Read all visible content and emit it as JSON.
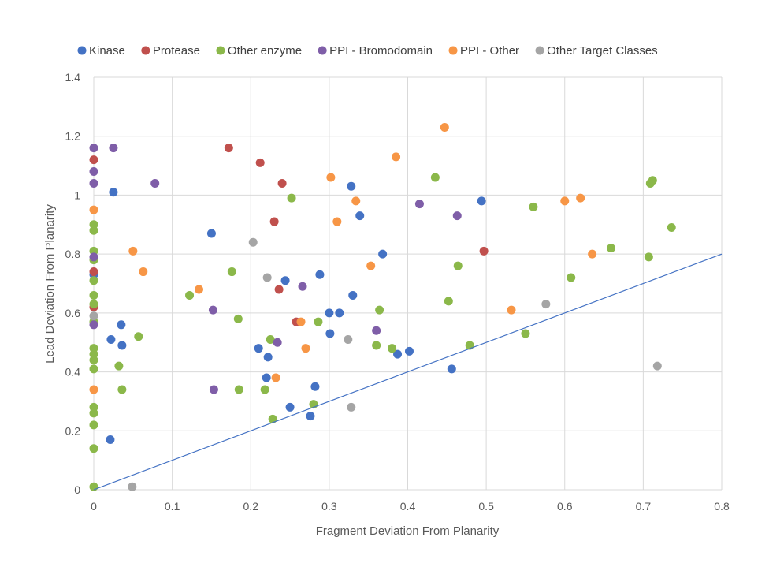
{
  "chart_data": {
    "type": "scatter",
    "title": "",
    "xlabel": "Fragment Deviation From Planarity",
    "ylabel": "Lead Deviation From Planarity",
    "xlim": [
      0,
      0.8
    ],
    "ylim": [
      0,
      1.4
    ],
    "x_ticks": [
      "0",
      "0.1",
      "0.2",
      "0.3",
      "0.4",
      "0.5",
      "0.6",
      "0.7",
      "0.8"
    ],
    "y_ticks": [
      "0",
      "0.2",
      "0.4",
      "0.6",
      "0.8",
      "1",
      "1.2",
      "1.4"
    ],
    "grid": true,
    "legend_position": "top",
    "trendline": {
      "type": "line",
      "points": [
        [
          0,
          0
        ],
        [
          0.8,
          0.8
        ]
      ],
      "color": "#4472c4"
    },
    "series": [
      {
        "name": "Kinase",
        "color": "#4472c4",
        "points": [
          [
            0,
            0.73
          ],
          [
            0.025,
            1.01
          ],
          [
            0.021,
            0.17
          ],
          [
            0.022,
            0.51
          ],
          [
            0.035,
            0.56
          ],
          [
            0.036,
            0.49
          ],
          [
            0.15,
            0.87
          ],
          [
            0.21,
            0.48
          ],
          [
            0.22,
            0.38
          ],
          [
            0.222,
            0.45
          ],
          [
            0.244,
            0.71
          ],
          [
            0.25,
            0.28
          ],
          [
            0.276,
            0.25
          ],
          [
            0.282,
            0.35
          ],
          [
            0.288,
            0.73
          ],
          [
            0.3,
            0.6
          ],
          [
            0.301,
            0.53
          ],
          [
            0.313,
            0.6
          ],
          [
            0.328,
            1.03
          ],
          [
            0.33,
            0.66
          ],
          [
            0.339,
            0.93
          ],
          [
            0.368,
            0.8
          ],
          [
            0.387,
            0.46
          ],
          [
            0.402,
            0.47
          ],
          [
            0.456,
            0.41
          ],
          [
            0.494,
            0.98
          ]
        ]
      },
      {
        "name": "Protease",
        "color": "#c0504d",
        "points": [
          [
            0,
            1.12
          ],
          [
            0,
            0.74
          ],
          [
            0,
            0.62
          ],
          [
            0.172,
            1.16
          ],
          [
            0.212,
            1.11
          ],
          [
            0.23,
            0.91
          ],
          [
            0.236,
            0.68
          ],
          [
            0.24,
            1.04
          ],
          [
            0.258,
            0.57
          ],
          [
            0.497,
            0.81
          ]
        ]
      },
      {
        "name": "Other enzyme",
        "color": "#8bb84a",
        "points": [
          [
            0,
            0.9
          ],
          [
            0,
            0.88
          ],
          [
            0,
            0.81
          ],
          [
            0,
            0.78
          ],
          [
            0,
            0.71
          ],
          [
            0,
            0.66
          ],
          [
            0,
            0.63
          ],
          [
            0,
            0.57
          ],
          [
            0,
            0.48
          ],
          [
            0,
            0.46
          ],
          [
            0,
            0.44
          ],
          [
            0,
            0.41
          ],
          [
            0,
            0.28
          ],
          [
            0,
            0.26
          ],
          [
            0,
            0.22
          ],
          [
            0,
            0.14
          ],
          [
            0,
            0.01
          ],
          [
            0.032,
            0.42
          ],
          [
            0.036,
            0.34
          ],
          [
            0.057,
            0.52
          ],
          [
            0.122,
            0.66
          ],
          [
            0.176,
            0.74
          ],
          [
            0.184,
            0.58
          ],
          [
            0.185,
            0.34
          ],
          [
            0.218,
            0.34
          ],
          [
            0.225,
            0.51
          ],
          [
            0.228,
            0.24
          ],
          [
            0.252,
            0.99
          ],
          [
            0.28,
            0.29
          ],
          [
            0.286,
            0.57
          ],
          [
            0.36,
            0.49
          ],
          [
            0.364,
            0.61
          ],
          [
            0.38,
            0.48
          ],
          [
            0.435,
            1.06
          ],
          [
            0.452,
            0.64
          ],
          [
            0.464,
            0.76
          ],
          [
            0.479,
            0.49
          ],
          [
            0.55,
            0.53
          ],
          [
            0.56,
            0.96
          ],
          [
            0.608,
            0.72
          ],
          [
            0.659,
            0.82
          ],
          [
            0.707,
            0.79
          ],
          [
            0.709,
            1.04
          ],
          [
            0.712,
            1.05
          ],
          [
            0.736,
            0.89
          ]
        ]
      },
      {
        "name": "PPI - Bromodomain",
        "color": "#7f5ea8",
        "points": [
          [
            0,
            1.16
          ],
          [
            0,
            1.08
          ],
          [
            0,
            1.04
          ],
          [
            0,
            0.79
          ],
          [
            0,
            0.56
          ],
          [
            0.025,
            1.16
          ],
          [
            0.078,
            1.04
          ],
          [
            0.152,
            0.61
          ],
          [
            0.153,
            0.34
          ],
          [
            0.234,
            0.5
          ],
          [
            0.266,
            0.69
          ],
          [
            0.36,
            0.54
          ],
          [
            0.415,
            0.97
          ],
          [
            0.463,
            0.93
          ]
        ]
      },
      {
        "name": "PPI - Other",
        "color": "#f79646",
        "points": [
          [
            0,
            0.95
          ],
          [
            0,
            0.34
          ],
          [
            0.05,
            0.81
          ],
          [
            0.063,
            0.74
          ],
          [
            0.134,
            0.68
          ],
          [
            0.232,
            0.38
          ],
          [
            0.264,
            0.57
          ],
          [
            0.27,
            0.48
          ],
          [
            0.302,
            1.06
          ],
          [
            0.31,
            0.91
          ],
          [
            0.334,
            0.98
          ],
          [
            0.353,
            0.76
          ],
          [
            0.385,
            1.13
          ],
          [
            0.447,
            1.23
          ],
          [
            0.532,
            0.61
          ],
          [
            0.6,
            0.98
          ],
          [
            0.62,
            0.99
          ],
          [
            0.635,
            0.8
          ]
        ]
      },
      {
        "name": "Other Target Classes",
        "color": "#a5a5a5",
        "points": [
          [
            0,
            0.59
          ],
          [
            0.049,
            0.01
          ],
          [
            0.203,
            0.84
          ],
          [
            0.221,
            0.72
          ],
          [
            0.324,
            0.51
          ],
          [
            0.328,
            0.28
          ],
          [
            0.576,
            0.63
          ],
          [
            0.718,
            0.42
          ]
        ]
      }
    ]
  }
}
